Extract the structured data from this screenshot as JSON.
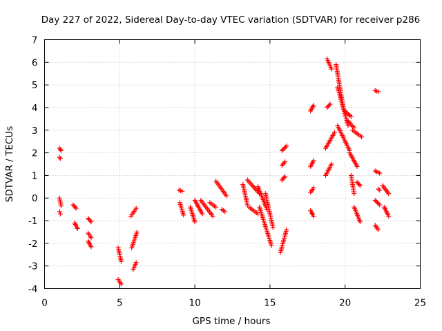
{
  "chart_data": {
    "type": "scatter",
    "title": "Day 227 of 2022, Sidereal Day-to-day VTEC variation (SDTVAR) for receiver p286",
    "xlabel": "GPS time / hours",
    "ylabel": "SDTVAR / TECUs",
    "xlim": [
      0,
      25
    ],
    "ylim": [
      -4,
      7
    ],
    "xticks": [
      0,
      5,
      10,
      15,
      20,
      25
    ],
    "yticks": [
      -4,
      -3,
      -2,
      -1,
      0,
      1,
      2,
      3,
      4,
      5,
      6,
      7
    ],
    "grid": true,
    "marker": "plus",
    "marker_color": "#ff0000",
    "segments": [
      {
        "x": [
          1.0,
          1.1
        ],
        "y": [
          2.2,
          2.1
        ]
      },
      {
        "x": [
          1.0,
          1.05
        ],
        "y": [
          1.8,
          1.75
        ]
      },
      {
        "x": [
          1.0,
          1.1
        ],
        "y": [
          0.0,
          -0.35
        ]
      },
      {
        "x": [
          1.0,
          1.05
        ],
        "y": [
          -0.6,
          -0.7
        ]
      },
      {
        "x": [
          1.9,
          2.1
        ],
        "y": [
          -0.3,
          -0.45
        ]
      },
      {
        "x": [
          2.0,
          2.2
        ],
        "y": [
          -1.1,
          -1.35
        ]
      },
      {
        "x": [
          2.9,
          3.1
        ],
        "y": [
          -0.9,
          -1.05
        ]
      },
      {
        "x": [
          2.9,
          3.1
        ],
        "y": [
          -1.55,
          -1.75
        ]
      },
      {
        "x": [
          2.9,
          3.1
        ],
        "y": [
          -1.9,
          -2.15
        ]
      },
      {
        "x": [
          4.9,
          5.1
        ],
        "y": [
          -2.2,
          -2.8
        ]
      },
      {
        "x": [
          4.9,
          5.1
        ],
        "y": [
          -3.6,
          -3.8
        ]
      },
      {
        "x": [
          5.75,
          6.1
        ],
        "y": [
          -0.8,
          -0.45
        ]
      },
      {
        "x": [
          5.8,
          6.15
        ],
        "y": [
          -2.2,
          -1.5
        ]
      },
      {
        "x": [
          5.9,
          6.1
        ],
        "y": [
          -3.15,
          -2.85
        ]
      },
      {
        "x": [
          8.95,
          9.15
        ],
        "y": [
          0.35,
          0.3
        ]
      },
      {
        "x": [
          9.0,
          9.25
        ],
        "y": [
          -0.2,
          -0.75
        ]
      },
      {
        "x": [
          9.7,
          10.0
        ],
        "y": [
          -0.4,
          -1.05
        ]
      },
      {
        "x": [
          10.0,
          10.5
        ],
        "y": [
          -0.1,
          -0.7
        ]
      },
      {
        "x": [
          10.4,
          11.2
        ],
        "y": [
          -0.1,
          -0.8
        ]
      },
      {
        "x": [
          11.0,
          11.4
        ],
        "y": [
          -0.2,
          -0.4
        ]
      },
      {
        "x": [
          11.4,
          12.1
        ],
        "y": [
          0.75,
          0.1
        ]
      },
      {
        "x": [
          11.8,
          12.0
        ],
        "y": [
          -0.5,
          -0.6
        ]
      },
      {
        "x": [
          13.2,
          13.5
        ],
        "y": [
          0.6,
          -0.3
        ]
      },
      {
        "x": [
          13.5,
          14.3
        ],
        "y": [
          0.8,
          0.2
        ]
      },
      {
        "x": [
          13.6,
          14.2
        ],
        "y": [
          -0.4,
          -0.7
        ]
      },
      {
        "x": [
          14.2,
          14.8
        ],
        "y": [
          0.5,
          -0.5
        ]
      },
      {
        "x": [
          14.3,
          15.1
        ],
        "y": [
          -0.4,
          -2.1
        ]
      },
      {
        "x": [
          14.7,
          15.2
        ],
        "y": [
          0.2,
          -1.3
        ]
      },
      {
        "x": [
          15.7,
          16.1
        ],
        "y": [
          -2.4,
          -1.4
        ]
      },
      {
        "x": [
          15.8,
          16.0
        ],
        "y": [
          0.8,
          0.95
        ]
      },
      {
        "x": [
          15.8,
          16.0
        ],
        "y": [
          1.45,
          1.6
        ]
      },
      {
        "x": [
          15.8,
          16.1
        ],
        "y": [
          2.1,
          2.3
        ]
      },
      {
        "x": [
          17.7,
          17.9
        ],
        "y": [
          -0.55,
          -0.8
        ]
      },
      {
        "x": [
          17.7,
          17.9
        ],
        "y": [
          0.25,
          0.45
        ]
      },
      {
        "x": [
          17.7,
          17.9
        ],
        "y": [
          1.4,
          1.65
        ]
      },
      {
        "x": [
          17.7,
          17.9
        ],
        "y": [
          3.85,
          4.1
        ]
      },
      {
        "x": [
          18.7,
          19.1
        ],
        "y": [
          1.0,
          1.5
        ]
      },
      {
        "x": [
          18.7,
          19.3
        ],
        "y": [
          2.2,
          2.9
        ]
      },
      {
        "x": [
          18.8,
          19.0
        ],
        "y": [
          4.0,
          4.15
        ]
      },
      {
        "x": [
          18.8,
          19.1
        ],
        "y": [
          6.15,
          5.7
        ]
      },
      {
        "x": [
          19.4,
          19.9
        ],
        "y": [
          5.9,
          3.9
        ]
      },
      {
        "x": [
          19.5,
          20.2
        ],
        "y": [
          4.9,
          3.2
        ]
      },
      {
        "x": [
          19.5,
          20.3
        ],
        "y": [
          3.2,
          2.1
        ]
      },
      {
        "x": [
          19.9,
          20.4
        ],
        "y": [
          3.9,
          3.6
        ]
      },
      {
        "x": [
          20.2,
          20.6
        ],
        "y": [
          3.4,
          3.1
        ]
      },
      {
        "x": [
          20.3,
          20.8
        ],
        "y": [
          2.0,
          1.4
        ]
      },
      {
        "x": [
          20.4,
          20.6
        ],
        "y": [
          1.0,
          0.2
        ]
      },
      {
        "x": [
          20.6,
          21.0
        ],
        "y": [
          -0.4,
          -1.05
        ]
      },
      {
        "x": [
          20.5,
          21.1
        ],
        "y": [
          3.0,
          2.7
        ]
      },
      {
        "x": [
          20.8,
          21.0
        ],
        "y": [
          0.7,
          0.55
        ]
      },
      {
        "x": [
          22.0,
          22.2
        ],
        "y": [
          4.75,
          4.7
        ]
      },
      {
        "x": [
          22.0,
          22.3
        ],
        "y": [
          1.2,
          1.1
        ]
      },
      {
        "x": [
          22.0,
          22.3
        ],
        "y": [
          -0.1,
          -0.3
        ]
      },
      {
        "x": [
          22.0,
          22.2
        ],
        "y": [
          -1.2,
          -1.4
        ]
      },
      {
        "x": [
          22.2,
          22.3
        ],
        "y": [
          0.4,
          0.35
        ]
      },
      {
        "x": [
          22.5,
          22.9
        ],
        "y": [
          0.55,
          0.2
        ]
      },
      {
        "x": [
          22.6,
          22.9
        ],
        "y": [
          -0.4,
          -0.8
        ]
      }
    ]
  }
}
